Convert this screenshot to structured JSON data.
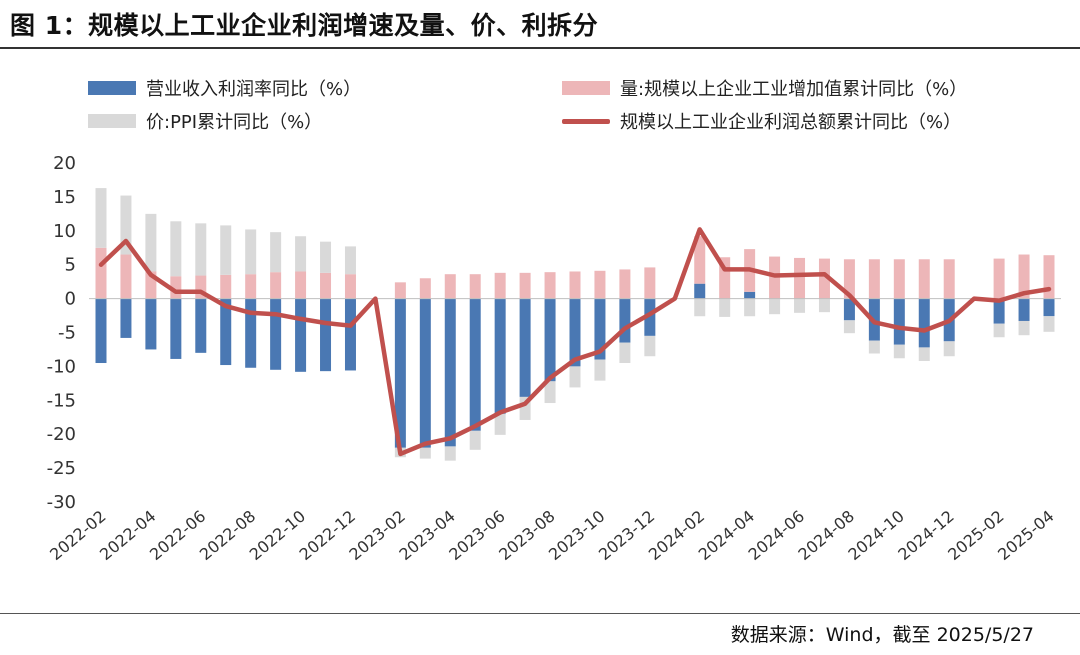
{
  "header": {
    "title": "图 1：规模以上工业企业利润增速及量、价、利拆分"
  },
  "footer": {
    "source": "数据来源：Wind，截至 2025/5/27"
  },
  "colors": {
    "margin_bar": "#4a78b3",
    "volume_bar": "#edb6b8",
    "ppi_bar": "#d9d9d9",
    "profit_line": "#c0504d"
  },
  "chart_data": {
    "type": "bar",
    "categories": [
      "2022-02",
      "2022-03",
      "2022-04",
      "2022-05",
      "2022-06",
      "2022-07",
      "2022-08",
      "2022-09",
      "2022-10",
      "2022-11",
      "2022-12",
      "2023-01",
      "2023-02",
      "2023-03",
      "2023-04",
      "2023-05",
      "2023-06",
      "2023-07",
      "2023-08",
      "2023-09",
      "2023-10",
      "2023-11",
      "2023-12",
      "2024-01",
      "2024-02",
      "2024-03",
      "2024-04",
      "2024-05",
      "2024-06",
      "2024-07",
      "2024-08",
      "2024-09",
      "2024-10",
      "2024-11",
      "2024-12",
      "2025-01",
      "2025-02",
      "2025-03",
      "2025-04"
    ],
    "x_tick_labels": [
      "2022-02",
      "2022-04",
      "2022-06",
      "2022-08",
      "2022-10",
      "2022-12",
      "2023-02",
      "2023-04",
      "2023-06",
      "2023-08",
      "2023-10",
      "2023-12",
      "2024-02",
      "2024-04",
      "2024-06",
      "2024-08",
      "2024-10",
      "2024-12",
      "2025-02",
      "2025-04"
    ],
    "y_ticks": [
      20,
      15,
      10,
      5,
      0,
      -5,
      -10,
      -15,
      -20,
      -25,
      -30
    ],
    "ylim": [
      -30,
      20
    ],
    "series": [
      {
        "name": "营业收入利润率同比（%）",
        "type": "bar",
        "values": [
          -9.5,
          -5.8,
          -7.5,
          -8.9,
          -8.0,
          -9.8,
          -10.2,
          -10.5,
          -10.8,
          -10.7,
          -10.6,
          null,
          -22.0,
          -22.0,
          -21.8,
          -19.5,
          -17.0,
          -14.5,
          -12.2,
          -10.0,
          -9.0,
          -6.5,
          -5.5,
          null,
          2.2,
          0.0,
          1.0,
          0.0,
          0.0,
          0.0,
          -3.2,
          -6.2,
          -6.8,
          -7.2,
          -6.3,
          null,
          -3.7,
          -3.3,
          -2.6
        ]
      },
      {
        "name": "量:规模以上企业工业增加值累计同比（%）",
        "type": "bar",
        "values": [
          7.5,
          6.5,
          4.0,
          3.3,
          3.4,
          3.5,
          3.6,
          3.9,
          4.0,
          3.8,
          3.6,
          null,
          2.4,
          3.0,
          3.6,
          3.6,
          3.8,
          3.8,
          3.9,
          4.0,
          4.1,
          4.3,
          4.6,
          null,
          7.0,
          6.1,
          6.3,
          6.2,
          6.0,
          5.9,
          5.8,
          5.8,
          5.8,
          5.8,
          5.8,
          null,
          5.9,
          6.5,
          6.4
        ]
      },
      {
        "name": "价:PPI累计同比（%）",
        "type": "bar",
        "values": [
          8.8,
          8.7,
          8.5,
          8.1,
          7.7,
          7.3,
          6.6,
          5.9,
          5.2,
          4.6,
          4.1,
          null,
          -1.4,
          -1.6,
          -2.1,
          -2.8,
          -3.1,
          -3.4,
          -3.2,
          -3.1,
          -3.1,
          -3.0,
          -3.0,
          null,
          -2.6,
          -2.7,
          -2.6,
          -2.3,
          -2.1,
          -2.0,
          -1.9,
          -1.9,
          -2.0,
          -2.0,
          -2.2,
          null,
          -2.0,
          -2.1,
          -2.3
        ]
      },
      {
        "name": "规模以上工业企业利润总额累计同比（%）",
        "type": "line",
        "values": [
          5.0,
          8.5,
          3.5,
          1.0,
          1.0,
          -1.1,
          -2.1,
          -2.3,
          -3.0,
          -3.6,
          -4.0,
          0.0,
          -22.9,
          -21.4,
          -20.6,
          -18.8,
          -16.8,
          -15.5,
          -11.7,
          -9.0,
          -7.8,
          -4.4,
          -2.3,
          0.0,
          10.2,
          4.3,
          4.3,
          3.4,
          3.5,
          3.6,
          0.5,
          -3.5,
          -4.3,
          -4.7,
          -3.3,
          0.0,
          -0.3,
          0.8,
          1.4
        ]
      }
    ]
  }
}
